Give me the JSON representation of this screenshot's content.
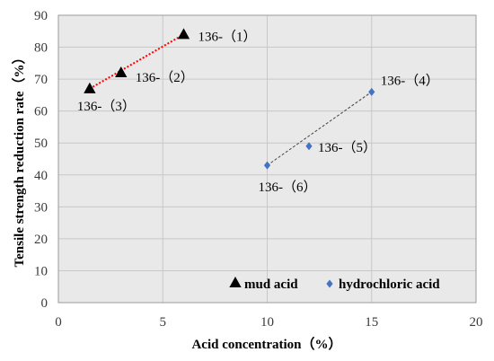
{
  "chart_data": {
    "type": "scatter",
    "title": "",
    "xlabel": "Acid concentration（%）",
    "ylabel": "Tensile strength reduction rate（%）",
    "xlim": [
      0,
      20
    ],
    "ylim": [
      0,
      90
    ],
    "x_ticks": [
      0,
      5,
      10,
      15,
      20
    ],
    "y_ticks": [
      0,
      10,
      20,
      30,
      40,
      50,
      60,
      70,
      80,
      90
    ],
    "grid": true,
    "legend_position": "bottom-right",
    "series": [
      {
        "name": "mud acid",
        "marker": "triangle",
        "color": "#000000",
        "line_color": "#ff0000",
        "line_style": "dotted",
        "points": [
          {
            "x": 6,
            "y": 84,
            "label": "136-（1）"
          },
          {
            "x": 3,
            "y": 72,
            "label": "136-（2）"
          },
          {
            "x": 1.5,
            "y": 67,
            "label": "136-（3）"
          }
        ]
      },
      {
        "name": "hydrochloric acid",
        "marker": "diamond",
        "color": "#4472c4",
        "line_color": "#404040",
        "line_style": "dashed",
        "points": [
          {
            "x": 15,
            "y": 66,
            "label": "136-（4）"
          },
          {
            "x": 12,
            "y": 49,
            "label": "136-（5）"
          },
          {
            "x": 10,
            "y": 43,
            "label": "136-（6）"
          }
        ]
      }
    ]
  }
}
